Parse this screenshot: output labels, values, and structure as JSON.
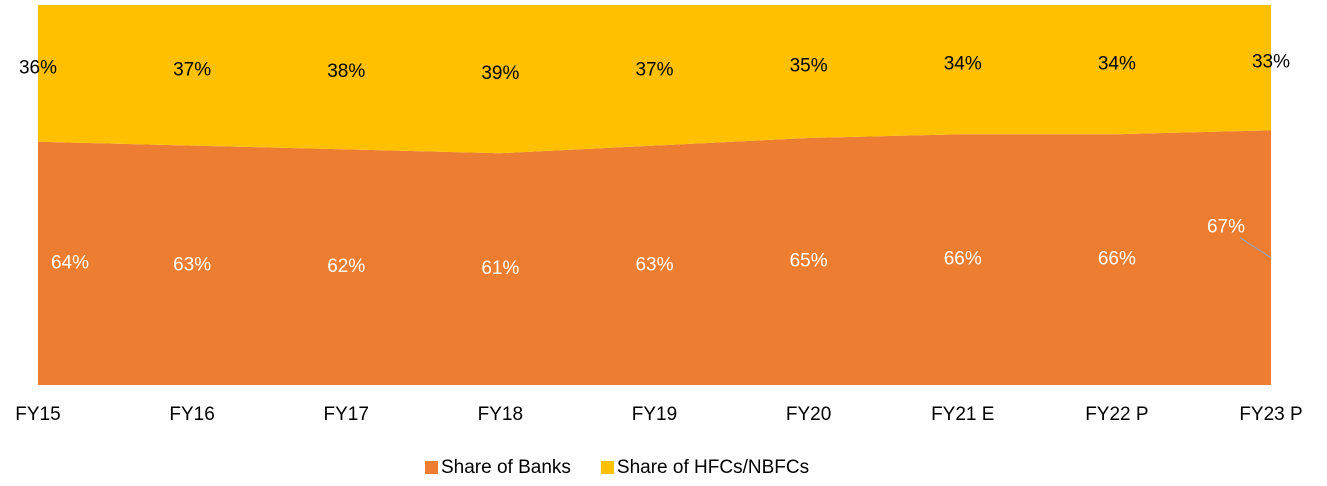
{
  "chart_data": {
    "type": "area",
    "stacked": true,
    "categories": [
      "FY15",
      "FY16",
      "FY17",
      "FY18",
      "FY19",
      "FY20",
      "FY21 E",
      "FY22 P",
      "FY23 P"
    ],
    "series": [
      {
        "name": "Share of Banks",
        "color": "#ed7d31",
        "values": [
          64,
          63,
          62,
          61,
          63,
          65,
          66,
          66,
          67
        ],
        "value_labels": [
          "64%",
          "63%",
          "62%",
          "61%",
          "63%",
          "65%",
          "66%",
          "66%",
          "67%"
        ]
      },
      {
        "name": "Share of HFCs/NBFCs",
        "color": "#ffc000",
        "values": [
          36,
          37,
          38,
          39,
          37,
          35,
          34,
          34,
          33
        ],
        "value_labels": [
          "36%",
          "37%",
          "38%",
          "39%",
          "37%",
          "35%",
          "34%",
          "34%",
          "33%"
        ]
      }
    ],
    "ylim": [
      0,
      100
    ],
    "legend": "bottom"
  }
}
